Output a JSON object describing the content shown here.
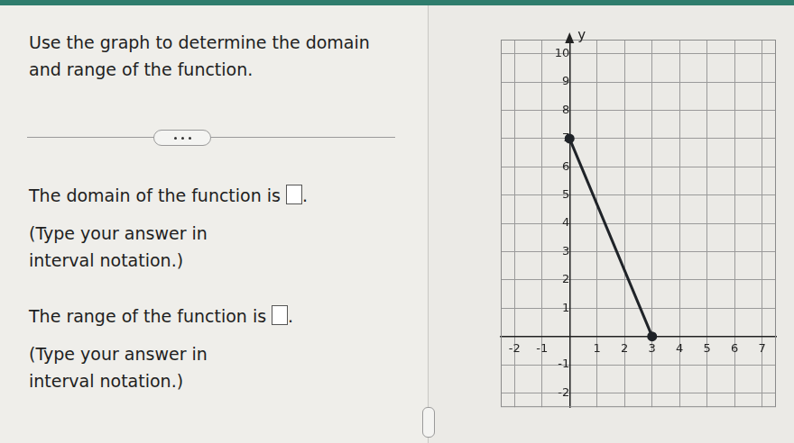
{
  "question": {
    "prompt": "Use the graph to determine the domain and range of the function.",
    "parts": [
      {
        "text": "The domain of the function is",
        "after_box": ".",
        "instruction": "(Type your answer in interval notation.)"
      },
      {
        "text": "The range of the function is",
        "after_box": ".",
        "instruction": "(Type your answer in interval notation.)"
      }
    ]
  },
  "chart_data": {
    "type": "line",
    "y_label": "y",
    "x": [
      0,
      3
    ],
    "values": [
      7,
      0
    ],
    "color": "#1f2328",
    "marker": "circle",
    "xlim": [
      -2.5,
      7.5
    ],
    "xticks": [
      -2,
      -1,
      1,
      2,
      3,
      4,
      5,
      6,
      7
    ],
    "ylim": [
      -2.5,
      10.5
    ],
    "yticks": [
      -2,
      -1,
      1,
      2,
      3,
      4,
      5,
      6,
      7,
      8,
      9,
      10
    ],
    "grid": true
  }
}
